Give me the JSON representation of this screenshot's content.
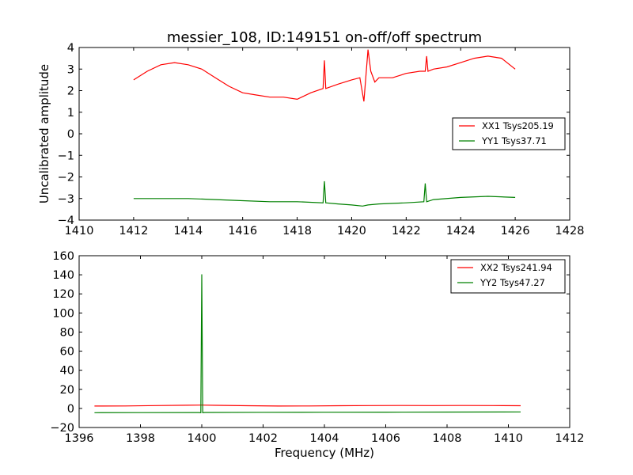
{
  "title": "messier_108, ID:149151 on-off/off spectrum",
  "chart_data": [
    {
      "type": "line",
      "title": "messier_108, ID:149151 on-off/off spectrum",
      "xlabel": "",
      "ylabel": "Uncalibrated amplitude",
      "xlim": [
        1410,
        1428
      ],
      "ylim": [
        -4,
        4
      ],
      "xticks": [
        "1410",
        "1412",
        "1414",
        "1416",
        "1418",
        "1420",
        "1422",
        "1424",
        "1426",
        "1428"
      ],
      "yticks": [
        "−4",
        "−3",
        "−2",
        "−1",
        "0",
        "1",
        "2",
        "3",
        "4"
      ],
      "legend_position": "center-right",
      "series": [
        {
          "name": "XX1 Tsys205.19",
          "color": "#ff0000",
          "x": [
            1412.0,
            1412.5,
            1413.0,
            1413.5,
            1414.0,
            1414.5,
            1415.0,
            1415.5,
            1416.0,
            1416.5,
            1417.0,
            1417.5,
            1418.0,
            1418.5,
            1418.95,
            1419.0,
            1419.05,
            1419.5,
            1420.0,
            1420.3,
            1420.45,
            1420.6,
            1420.7,
            1420.85,
            1421.0,
            1421.5,
            1422.0,
            1422.5,
            1422.7,
            1422.75,
            1422.8,
            1423.0,
            1423.5,
            1424.0,
            1424.5,
            1425.0,
            1425.5,
            1426.0
          ],
          "y": [
            2.5,
            2.9,
            3.2,
            3.3,
            3.2,
            3.0,
            2.6,
            2.2,
            1.9,
            1.8,
            1.7,
            1.7,
            1.6,
            1.9,
            2.1,
            3.4,
            2.1,
            2.3,
            2.5,
            2.6,
            1.5,
            3.9,
            2.9,
            2.4,
            2.6,
            2.6,
            2.8,
            2.9,
            2.9,
            3.6,
            2.9,
            3.0,
            3.1,
            3.3,
            3.5,
            3.6,
            3.5,
            3.0
          ]
        },
        {
          "name": "YY1 Tsys37.71",
          "color": "#008000",
          "x": [
            1412.0,
            1413.0,
            1414.0,
            1415.0,
            1416.0,
            1417.0,
            1418.0,
            1418.95,
            1419.0,
            1419.05,
            1419.5,
            1420.0,
            1420.4,
            1420.6,
            1421.0,
            1422.0,
            1422.65,
            1422.7,
            1422.75,
            1423.0,
            1424.0,
            1425.0,
            1426.0
          ],
          "y": [
            -3.0,
            -3.0,
            -3.0,
            -3.05,
            -3.1,
            -3.15,
            -3.15,
            -3.2,
            -2.2,
            -3.2,
            -3.25,
            -3.3,
            -3.35,
            -3.3,
            -3.25,
            -3.2,
            -3.15,
            -2.3,
            -3.15,
            -3.05,
            -2.95,
            -2.9,
            -2.95
          ]
        }
      ]
    },
    {
      "type": "line",
      "title": "",
      "xlabel": "Frequency (MHz)",
      "ylabel": "",
      "xlim": [
        1396,
        1412
      ],
      "ylim": [
        -20,
        160
      ],
      "xticks": [
        "1396",
        "1398",
        "1400",
        "1402",
        "1404",
        "1406",
        "1408",
        "1410",
        "1412"
      ],
      "yticks": [
        "−20",
        "0",
        "20",
        "40",
        "60",
        "80",
        "100",
        "120",
        "140",
        "160"
      ],
      "legend_position": "top-right",
      "series": [
        {
          "name": "XX2 Tsys241.94",
          "color": "#ff0000",
          "x": [
            1396.5,
            1397.5,
            1398.5,
            1399.5,
            1400.0,
            1400.5,
            1401.5,
            1402.5,
            1403.5,
            1404.5,
            1405.5,
            1406.5,
            1407.5,
            1408.5,
            1409.5,
            1410.4
          ],
          "y": [
            2.5,
            2.6,
            3.0,
            3.3,
            3.5,
            3.2,
            2.8,
            2.5,
            2.6,
            2.8,
            3.0,
            3.1,
            3.0,
            3.1,
            3.0,
            2.8
          ]
        },
        {
          "name": "YY2 Tsys47.27",
          "color": "#008000",
          "x": [
            1396.5,
            1398.0,
            1399.9,
            1399.97,
            1400.0,
            1400.03,
            1400.1,
            1402.0,
            1404.0,
            1406.0,
            1408.0,
            1410.4
          ],
          "y": [
            -4.5,
            -4.4,
            -4.3,
            -4.5,
            140.5,
            -4.5,
            -4.2,
            -4.1,
            -4.0,
            -3.9,
            -3.8,
            -3.7
          ]
        }
      ]
    }
  ]
}
